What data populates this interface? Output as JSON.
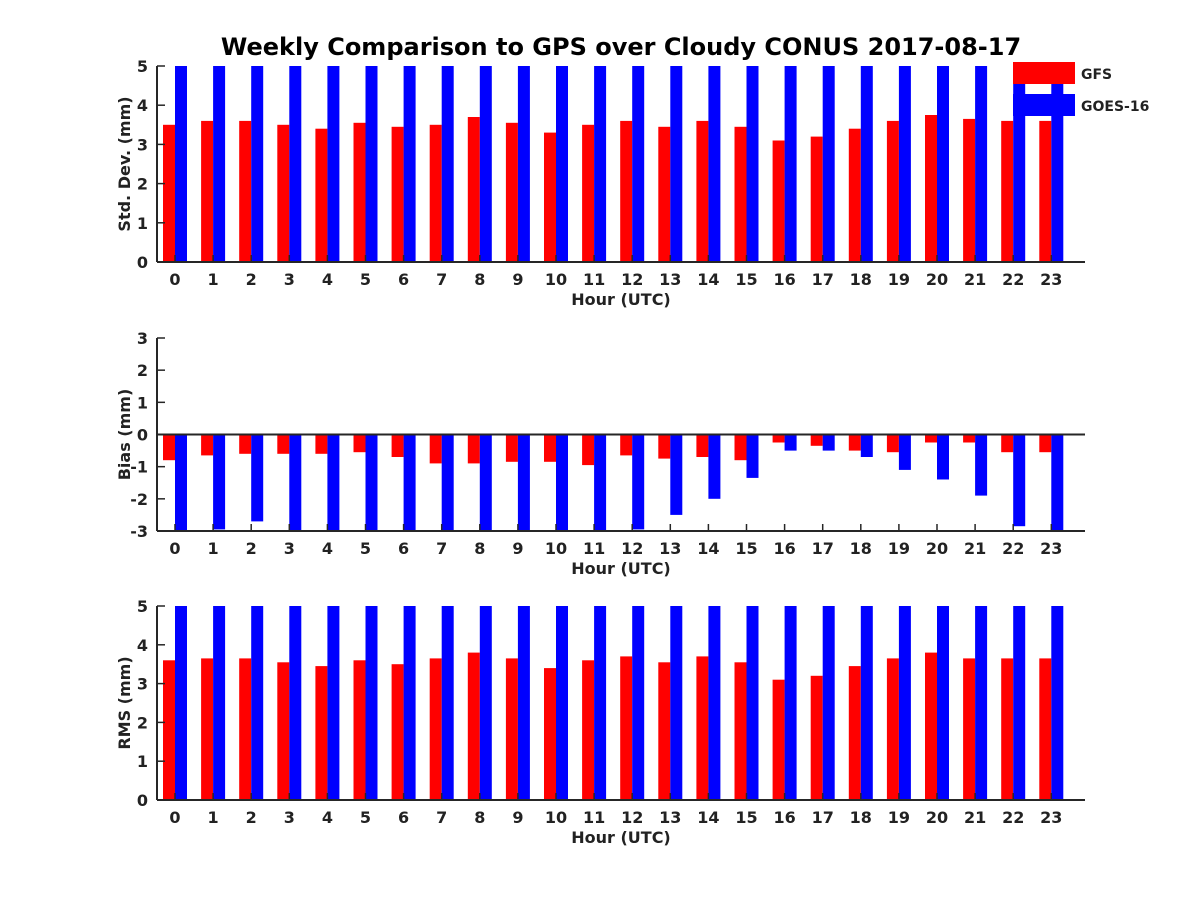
{
  "title": "Weekly Comparison to GPS over Cloudy CONUS 2017-08-17",
  "colors": {
    "GFS": "#ff0000",
    "GOES-16": "#0000ff",
    "axis": "#262626"
  },
  "legend": {
    "placement": "top-right",
    "entries": [
      "GFS",
      "GOES-16"
    ]
  },
  "chart_data": [
    {
      "type": "bar",
      "xlabel": "Hour (UTC)",
      "ylabel": "Std. Dev. (mm)",
      "ylim": [
        0,
        5
      ],
      "yticks": [
        "0",
        "1",
        "2",
        "3",
        "4",
        "5"
      ],
      "categories": [
        "0",
        "1",
        "2",
        "3",
        "4",
        "5",
        "6",
        "7",
        "8",
        "9",
        "10",
        "11",
        "12",
        "13",
        "14",
        "15",
        "16",
        "17",
        "18",
        "19",
        "20",
        "21",
        "22",
        "23"
      ],
      "grid": false,
      "series": [
        {
          "name": "GFS",
          "values": [
            3.5,
            3.6,
            3.6,
            3.5,
            3.4,
            3.55,
            3.45,
            3.5,
            3.7,
            3.55,
            3.3,
            3.5,
            3.6,
            3.45,
            3.6,
            3.45,
            3.1,
            3.2,
            3.4,
            3.6,
            3.75,
            3.65,
            3.6,
            3.6
          ]
        },
        {
          "name": "GOES-16",
          "values": [
            5.5,
            5.5,
            5.5,
            5.5,
            5.5,
            5.5,
            5.5,
            5.5,
            5.5,
            5.5,
            5.5,
            5.5,
            5.5,
            5.5,
            5.5,
            5.5,
            5.5,
            5.5,
            5.5,
            5.5,
            5.5,
            5.5,
            5.5,
            5.5
          ]
        }
      ]
    },
    {
      "type": "bar",
      "xlabel": "Hour (UTC)",
      "ylabel": "Bias (mm)",
      "ylim": [
        -3,
        3
      ],
      "yticks": [
        "-3",
        "-2",
        "-1",
        "0",
        "1",
        "2",
        "3"
      ],
      "categories": [
        "0",
        "1",
        "2",
        "3",
        "4",
        "5",
        "6",
        "7",
        "8",
        "9",
        "10",
        "11",
        "12",
        "13",
        "14",
        "15",
        "16",
        "17",
        "18",
        "19",
        "20",
        "21",
        "22",
        "23"
      ],
      "grid": false,
      "series": [
        {
          "name": "GFS",
          "values": [
            -0.8,
            -0.65,
            -0.6,
            -0.6,
            -0.6,
            -0.55,
            -0.7,
            -0.9,
            -0.9,
            -0.85,
            -0.85,
            -0.95,
            -0.65,
            -0.75,
            -0.7,
            -0.8,
            -0.25,
            -0.35,
            -0.5,
            -0.55,
            -0.25,
            -0.25,
            -0.55,
            -0.55
          ]
        },
        {
          "name": "GOES-16",
          "values": [
            -3.1,
            -2.95,
            -2.7,
            -3.0,
            -3.1,
            -3.1,
            -3.1,
            -3.1,
            -3.1,
            -3.1,
            -3.1,
            -3.1,
            -2.95,
            -2.5,
            -2.0,
            -1.35,
            -0.5,
            -0.5,
            -0.7,
            -1.1,
            -1.4,
            -1.9,
            -2.85,
            -3.1
          ]
        }
      ]
    },
    {
      "type": "bar",
      "xlabel": "Hour (UTC)",
      "ylabel": "RMS (mm)",
      "ylim": [
        0,
        5
      ],
      "yticks": [
        "0",
        "1",
        "2",
        "3",
        "4",
        "5"
      ],
      "categories": [
        "0",
        "1",
        "2",
        "3",
        "4",
        "5",
        "6",
        "7",
        "8",
        "9",
        "10",
        "11",
        "12",
        "13",
        "14",
        "15",
        "16",
        "17",
        "18",
        "19",
        "20",
        "21",
        "22",
        "23"
      ],
      "grid": false,
      "series": [
        {
          "name": "GFS",
          "values": [
            3.6,
            3.65,
            3.65,
            3.55,
            3.45,
            3.6,
            3.5,
            3.65,
            3.8,
            3.65,
            3.4,
            3.6,
            3.7,
            3.55,
            3.7,
            3.55,
            3.1,
            3.2,
            3.45,
            3.65,
            3.8,
            3.65,
            3.65,
            3.65
          ]
        },
        {
          "name": "GOES-16",
          "values": [
            5.5,
            5.5,
            5.5,
            5.5,
            5.5,
            5.5,
            5.5,
            5.5,
            5.5,
            5.5,
            5.5,
            5.5,
            5.5,
            5.5,
            5.5,
            5.5,
            5.5,
            5.5,
            5.5,
            5.5,
            5.5,
            5.5,
            5.5,
            5.5
          ]
        }
      ]
    }
  ]
}
